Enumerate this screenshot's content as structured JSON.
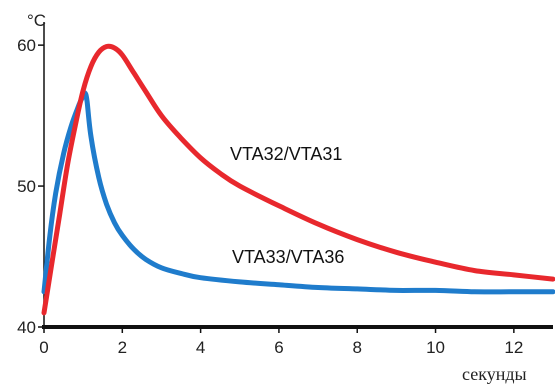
{
  "chart_data": {
    "type": "line",
    "title": "",
    "ylabel": "°C",
    "xlabel": "секунды",
    "xlim": [
      0,
      13
    ],
    "ylim": [
      40,
      61.5
    ],
    "x_ticks": [
      0,
      2,
      4,
      6,
      8,
      10,
      12
    ],
    "y_ticks": [
      40,
      50,
      60
    ],
    "grid": false,
    "series": [
      {
        "name": "VTA32/VTA31",
        "color": "#e8282d",
        "x": [
          0,
          0.2,
          0.4,
          0.6,
          0.8,
          1.0,
          1.2,
          1.4,
          1.6,
          1.8,
          2.0,
          2.3,
          2.6,
          3.0,
          3.5,
          4.0,
          4.5,
          5.0,
          6.0,
          7.0,
          8.0,
          9.0,
          10.0,
          11.0,
          12.0,
          13.0
        ],
        "values": [
          41.0,
          44.5,
          48.0,
          51.5,
          54.3,
          56.8,
          58.5,
          59.5,
          59.9,
          59.8,
          59.3,
          58.0,
          56.7,
          55.0,
          53.4,
          52.0,
          50.9,
          50.0,
          48.6,
          47.3,
          46.2,
          45.3,
          44.6,
          44.0,
          43.7,
          43.4
        ]
      },
      {
        "name": "VTA33/VTA36",
        "color": "#1f7ccc",
        "x": [
          0,
          0.15,
          0.3,
          0.5,
          0.7,
          0.9,
          1.0,
          1.05,
          1.1,
          1.2,
          1.4,
          1.6,
          1.8,
          2.0,
          2.3,
          2.6,
          3.0,
          3.5,
          4.0,
          5.0,
          6.0,
          7.0,
          8.0,
          9.0,
          10.0,
          11.0,
          12.0,
          13.0
        ],
        "values": [
          42.5,
          46.5,
          49.5,
          52.3,
          54.3,
          55.8,
          56.4,
          56.6,
          56.0,
          53.5,
          50.6,
          48.7,
          47.4,
          46.5,
          45.5,
          44.8,
          44.2,
          43.8,
          43.5,
          43.2,
          43.0,
          42.8,
          42.7,
          42.6,
          42.6,
          42.5,
          42.5,
          42.5
        ]
      }
    ]
  }
}
